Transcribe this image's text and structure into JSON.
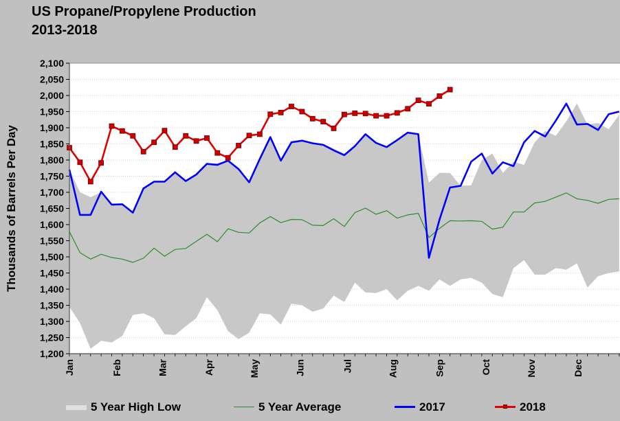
{
  "title": {
    "line1": "US Propane/Propylene Production",
    "line2": "2013-2018"
  },
  "colors": {
    "background": "#c0c0c0",
    "plot_background": "#ffffff",
    "band": "#c8c8c8",
    "average": "#2e8b2e",
    "series_2017": "#0000ff",
    "series_2018": "#e00000",
    "marker_2018": "#cc0000"
  },
  "chart_data": {
    "type": "line",
    "title": "US Propane/Propylene Production 2013-2018",
    "ylabel": "Thousands of Barrels Per Day",
    "xlabel": "",
    "ylim": [
      1200,
      2100
    ],
    "ytick_step": 50,
    "yticks": [
      "1,200",
      "1,250",
      "1,300",
      "1,350",
      "1,400",
      "1,450",
      "1,500",
      "1,550",
      "1,600",
      "1,650",
      "1,700",
      "1,750",
      "1,800",
      "1,850",
      "1,900",
      "1,950",
      "2,000",
      "2,050",
      "2,100"
    ],
    "x_domain": [
      "Jan",
      "end of Dec"
    ],
    "month_ticks": [
      {
        "label": "Jan",
        "week": 1
      },
      {
        "label": "Feb",
        "week": 5.5
      },
      {
        "label": "Mar",
        "week": 9.8
      },
      {
        "label": "Apr",
        "week": 14.2
      },
      {
        "label": "May",
        "week": 18.5
      },
      {
        "label": "Jun",
        "week": 22.8
      },
      {
        "label": "Jul",
        "week": 27.3
      },
      {
        "label": "Aug",
        "week": 31.6
      },
      {
        "label": "Sep",
        "week": 36.0
      },
      {
        "label": "Oct",
        "week": 40.4
      },
      {
        "label": "Nov",
        "week": 44.7
      },
      {
        "label": "Dec",
        "week": 49.1
      }
    ],
    "grid": true,
    "legend_position": "bottom",
    "weeks": [
      1,
      2,
      3,
      4,
      5,
      6,
      7,
      8,
      9,
      10,
      11,
      12,
      13,
      14,
      15,
      16,
      17,
      18,
      19,
      20,
      21,
      22,
      23,
      24,
      25,
      26,
      27,
      28,
      29,
      30,
      31,
      32,
      33,
      34,
      35,
      36,
      37,
      38,
      39,
      40,
      41,
      42,
      43,
      44,
      45,
      46,
      47,
      48,
      49,
      50,
      51,
      52,
      53
    ],
    "series": [
      {
        "name": "5 Year High Low",
        "kind": "band",
        "high": [
          1770,
          1700,
          1685,
          1700,
          1660,
          1665,
          1640,
          1710,
          1735,
          1735,
          1765,
          1735,
          1758,
          1785,
          1790,
          1800,
          1775,
          1730,
          1800,
          1870,
          1795,
          1855,
          1860,
          1855,
          1850,
          1835,
          1820,
          1840,
          1880,
          1855,
          1840,
          1860,
          1885,
          1880,
          1730,
          1760,
          1760,
          1720,
          1722,
          1800,
          1820,
          1760,
          1795,
          1785,
          1855,
          1890,
          1875,
          1920,
          1975,
          1910,
          1915,
          1895,
          1940
        ],
        "low": [
          1345,
          1295,
          1215,
          1240,
          1235,
          1255,
          1320,
          1325,
          1310,
          1260,
          1258,
          1285,
          1310,
          1375,
          1335,
          1270,
          1245,
          1265,
          1325,
          1322,
          1290,
          1355,
          1350,
          1330,
          1340,
          1380,
          1360,
          1420,
          1390,
          1388,
          1400,
          1365,
          1395,
          1410,
          1395,
          1430,
          1410,
          1430,
          1435,
          1420,
          1385,
          1375,
          1465,
          1490,
          1445,
          1445,
          1465,
          1460,
          1480,
          1405,
          1440,
          1450,
          1455
        ]
      },
      {
        "name": "5 Year Average",
        "kind": "line",
        "values": [
          1578,
          1513,
          1493,
          1508,
          1498,
          1493,
          1483,
          1496,
          1527,
          1502,
          1523,
          1526,
          1548,
          1570,
          1547,
          1587,
          1576,
          1574,
          1605,
          1625,
          1606,
          1616,
          1615,
          1598,
          1597,
          1618,
          1594,
          1637,
          1651,
          1632,
          1643,
          1620,
          1630,
          1635,
          1560,
          1588,
          1612,
          1611,
          1612,
          1610,
          1586,
          1592,
          1639,
          1639,
          1667,
          1672,
          1685,
          1698,
          1680,
          1675,
          1666,
          1678,
          1680
        ]
      },
      {
        "name": "2017",
        "kind": "line",
        "values": [
          1770,
          1630,
          1630,
          1702,
          1662,
          1663,
          1637,
          1712,
          1733,
          1733,
          1762,
          1735,
          1755,
          1788,
          1785,
          1798,
          1772,
          1731,
          1803,
          1871,
          1798,
          1855,
          1860,
          1852,
          1847,
          1830,
          1815,
          1843,
          1880,
          1853,
          1840,
          1862,
          1885,
          1880,
          1497,
          1615,
          1715,
          1720,
          1795,
          1820,
          1758,
          1793,
          1781,
          1855,
          1890,
          1873,
          1922,
          1975,
          1910,
          1912,
          1893,
          1942,
          1950
        ]
      },
      {
        "name": "2018",
        "kind": "line-markers",
        "values": [
          1838,
          1793,
          1733,
          1791,
          1905,
          1890,
          1875,
          1826,
          1855,
          1891,
          1840,
          1875,
          1859,
          1868,
          1822,
          1807,
          1845,
          1876,
          1880,
          1942,
          1947,
          1966,
          1950,
          1928,
          1919,
          1898,
          1941,
          1945,
          1944,
          1937,
          1937,
          1946,
          1959,
          1985,
          1974,
          1998,
          2018
        ]
      }
    ]
  },
  "legend": {
    "items": [
      {
        "label": "5 Year High Low"
      },
      {
        "label": "5 Year Average"
      },
      {
        "label": "2017"
      },
      {
        "label": "2018"
      }
    ]
  }
}
